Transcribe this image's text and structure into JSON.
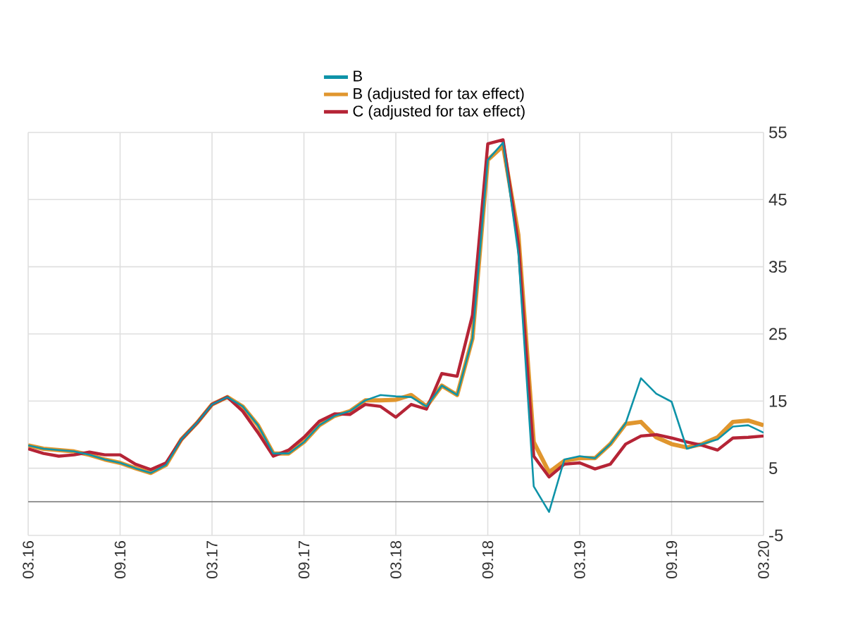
{
  "chart_data": {
    "type": "line",
    "categories": [
      "03.16",
      null,
      null,
      null,
      null,
      null,
      "09.16",
      null,
      null,
      null,
      null,
      null,
      "03.17",
      null,
      null,
      null,
      null,
      null,
      "09.17",
      null,
      null,
      null,
      null,
      null,
      "03.18",
      null,
      null,
      null,
      null,
      null,
      "09.18",
      null,
      null,
      null,
      null,
      null,
      "03.19",
      null,
      null,
      null,
      null,
      null,
      "09.19",
      null,
      null,
      null,
      null,
      null,
      "03.20"
    ],
    "series": [
      {
        "name": "B",
        "color": "#0e93a8",
        "values": [
          8.4,
          7.9,
          7.7,
          7.5,
          7.0,
          6.3,
          5.8,
          5.0,
          4.3,
          5.5,
          9.3,
          11.7,
          14.5,
          15.6,
          14.2,
          11.4,
          7.2,
          7.2,
          8.9,
          11.4,
          12.8,
          13.5,
          15.1,
          15.9,
          15.7,
          15.6,
          14.2,
          17.3,
          15.9,
          24.3,
          50.9,
          53.5,
          36.9,
          2.3,
          -1.5,
          6.3,
          6.8,
          6.5,
          8.6,
          11.7,
          18.4,
          16.1,
          14.9,
          7.9,
          8.6,
          9.3,
          11.2,
          11.4,
          10.3
        ]
      },
      {
        "name": "B (adjusted for tax effect)",
        "color": "#e0962e",
        "values": [
          8.4,
          7.9,
          7.7,
          7.5,
          7.0,
          6.3,
          5.8,
          5.0,
          4.3,
          5.5,
          9.3,
          11.7,
          14.5,
          15.6,
          14.2,
          11.4,
          7.2,
          7.2,
          8.9,
          11.4,
          12.8,
          13.5,
          15.1,
          15.1,
          15.2,
          15.9,
          14.2,
          17.3,
          15.9,
          24.3,
          50.9,
          53.0,
          39.7,
          8.9,
          4.4,
          6.1,
          6.5,
          6.5,
          8.6,
          11.6,
          11.9,
          9.6,
          8.6,
          8.1,
          8.6,
          9.6,
          11.9,
          12.1,
          11.4
        ]
      },
      {
        "name": "C (adjusted for tax effect)",
        "color": "#b52436",
        "values": [
          7.9,
          7.2,
          6.8,
          7.0,
          7.4,
          7.0,
          7.0,
          5.6,
          4.8,
          5.8,
          9.3,
          11.7,
          14.5,
          15.6,
          13.5,
          10.3,
          6.8,
          7.7,
          9.6,
          12.0,
          13.1,
          13.0,
          14.5,
          14.2,
          12.6,
          14.5,
          13.8,
          19.1,
          18.7,
          27.8,
          53.3,
          53.9,
          38.3,
          6.8,
          3.7,
          5.6,
          5.8,
          4.9,
          5.6,
          8.6,
          9.8,
          10.0,
          9.5,
          8.9,
          8.4,
          7.7,
          9.5,
          9.6,
          9.8
        ]
      }
    ],
    "ylim": [
      -5,
      55
    ],
    "yticks": [
      -5,
      5,
      15,
      25,
      35,
      45,
      55
    ],
    "grid": true,
    "legend": "top",
    "marker": "none",
    "line_style": "solid"
  }
}
